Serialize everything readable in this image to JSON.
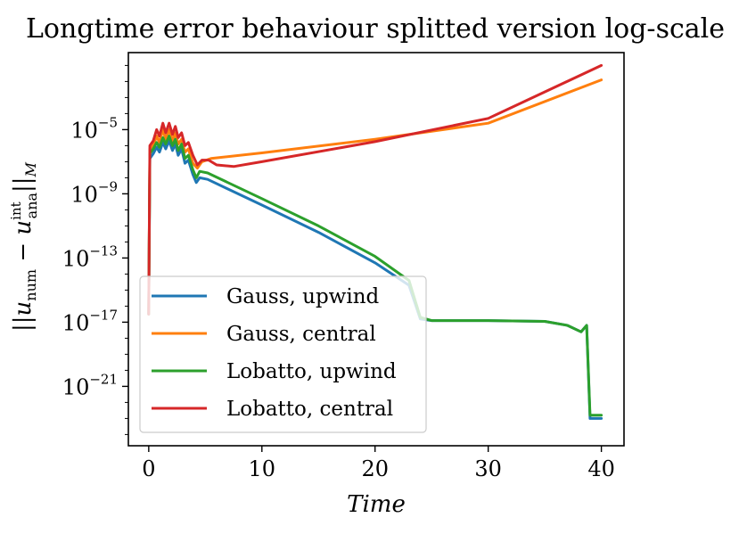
{
  "chart_data": {
    "type": "line",
    "title": "Longtime error behaviour splitted version log-scale",
    "xlabel": "Time",
    "ylabel": "||u_num − u_ana^int||_M",
    "ylabel_parts": {
      "bars_open": "||",
      "u1": "u",
      "sub1": "num",
      "minus": " − ",
      "u2": "u",
      "sub2": "ana",
      "sup2": "int",
      "bars_close": "||",
      "subM": "M"
    },
    "xlim": [
      -1.8,
      42
    ],
    "ylim_log10": [
      -24.7,
      -0.2
    ],
    "xticks": [
      0,
      10,
      20,
      30,
      40
    ],
    "xtick_labels": [
      "0",
      "10",
      "20",
      "30",
      "40"
    ],
    "yticks_exp": [
      -5,
      -9,
      -13,
      -17,
      -21
    ],
    "ytick_base": "10",
    "ytick_exp_labels": [
      "−5",
      "−9",
      "−13",
      "−17",
      "−21"
    ],
    "legend_position": "lower-left",
    "series": [
      {
        "name": "Gauss, upwind",
        "color": "#1f77b4",
        "log10_points": [
          [
            0,
            -16.5
          ],
          [
            0.1,
            -6.8
          ],
          [
            0.4,
            -6.5
          ],
          [
            0.7,
            -6.1
          ],
          [
            0.95,
            -6.4
          ],
          [
            1.25,
            -5.8
          ],
          [
            1.5,
            -6.2
          ],
          [
            1.8,
            -5.7
          ],
          [
            2.1,
            -6.3
          ],
          [
            2.35,
            -5.9
          ],
          [
            2.6,
            -6.6
          ],
          [
            2.9,
            -6.2
          ],
          [
            3.2,
            -7.1
          ],
          [
            3.5,
            -6.9
          ],
          [
            3.9,
            -7.8
          ],
          [
            4.2,
            -8.3
          ],
          [
            4.5,
            -8.0
          ],
          [
            5.2,
            -8.1
          ],
          [
            7,
            -8.7
          ],
          [
            10,
            -9.7
          ],
          [
            15,
            -11.4
          ],
          [
            20,
            -13.3
          ],
          [
            23,
            -14.7
          ],
          [
            24,
            -16.8
          ],
          [
            25,
            -16.9
          ],
          [
            30,
            -16.9
          ],
          [
            35,
            -16.95
          ],
          [
            37,
            -17.2
          ],
          [
            38.2,
            -17.6
          ],
          [
            38.7,
            -17.2
          ],
          [
            39.0,
            -23.0
          ],
          [
            40,
            -23.0
          ]
        ]
      },
      {
        "name": "Gauss, central",
        "color": "#ff7f0e",
        "log10_points": [
          [
            0,
            -16.5
          ],
          [
            0.1,
            -6.2
          ],
          [
            0.4,
            -6.0
          ],
          [
            0.7,
            -5.4
          ],
          [
            0.95,
            -5.8
          ],
          [
            1.25,
            -5.0
          ],
          [
            1.5,
            -5.6
          ],
          [
            1.8,
            -5.0
          ],
          [
            2.1,
            -5.7
          ],
          [
            2.35,
            -5.2
          ],
          [
            2.6,
            -5.9
          ],
          [
            2.9,
            -5.6
          ],
          [
            3.2,
            -6.4
          ],
          [
            3.5,
            -6.2
          ],
          [
            3.9,
            -7.1
          ],
          [
            4.3,
            -7.4
          ],
          [
            4.7,
            -7.0
          ],
          [
            5.5,
            -6.8
          ],
          [
            10,
            -6.45
          ],
          [
            20,
            -5.6
          ],
          [
            30,
            -4.6
          ],
          [
            40,
            -1.9
          ]
        ]
      },
      {
        "name": "Lobatto, upwind",
        "color": "#2ca02c",
        "log10_points": [
          [
            0,
            -16.5
          ],
          [
            0.1,
            -6.5
          ],
          [
            0.4,
            -6.2
          ],
          [
            0.7,
            -5.8
          ],
          [
            0.95,
            -6.1
          ],
          [
            1.25,
            -5.5
          ],
          [
            1.5,
            -5.9
          ],
          [
            1.8,
            -5.4
          ],
          [
            2.1,
            -6.0
          ],
          [
            2.35,
            -5.6
          ],
          [
            2.6,
            -6.3
          ],
          [
            2.9,
            -5.9
          ],
          [
            3.2,
            -6.8
          ],
          [
            3.5,
            -6.6
          ],
          [
            3.9,
            -7.5
          ],
          [
            4.2,
            -8.0
          ],
          [
            4.5,
            -7.6
          ],
          [
            5.2,
            -7.7
          ],
          [
            7,
            -8.3
          ],
          [
            10,
            -9.3
          ],
          [
            15,
            -11.0
          ],
          [
            20,
            -12.9
          ],
          [
            23,
            -14.4
          ],
          [
            24,
            -16.7
          ],
          [
            25,
            -16.9
          ],
          [
            30,
            -16.9
          ],
          [
            35,
            -16.95
          ],
          [
            37,
            -17.2
          ],
          [
            38.2,
            -17.6
          ],
          [
            38.7,
            -17.2
          ],
          [
            39.0,
            -22.8
          ],
          [
            40,
            -22.8
          ]
        ]
      },
      {
        "name": "Lobatto, central",
        "color": "#d62728",
        "log10_points": [
          [
            0,
            -16.5
          ],
          [
            0.1,
            -6.0
          ],
          [
            0.4,
            -5.7
          ],
          [
            0.7,
            -5.0
          ],
          [
            0.95,
            -5.4
          ],
          [
            1.25,
            -4.6
          ],
          [
            1.5,
            -5.2
          ],
          [
            1.8,
            -4.6
          ],
          [
            2.1,
            -5.3
          ],
          [
            2.35,
            -4.8
          ],
          [
            2.6,
            -5.5
          ],
          [
            2.9,
            -5.2
          ],
          [
            3.2,
            -6.0
          ],
          [
            3.5,
            -5.8
          ],
          [
            3.9,
            -6.6
          ],
          [
            4.3,
            -7.2
          ],
          [
            4.7,
            -6.9
          ],
          [
            5.3,
            -6.9
          ],
          [
            6,
            -7.2
          ],
          [
            7.5,
            -7.3
          ],
          [
            10,
            -7.0
          ],
          [
            20,
            -5.75
          ],
          [
            30,
            -4.3
          ],
          [
            40,
            -1.0
          ]
        ]
      }
    ]
  }
}
